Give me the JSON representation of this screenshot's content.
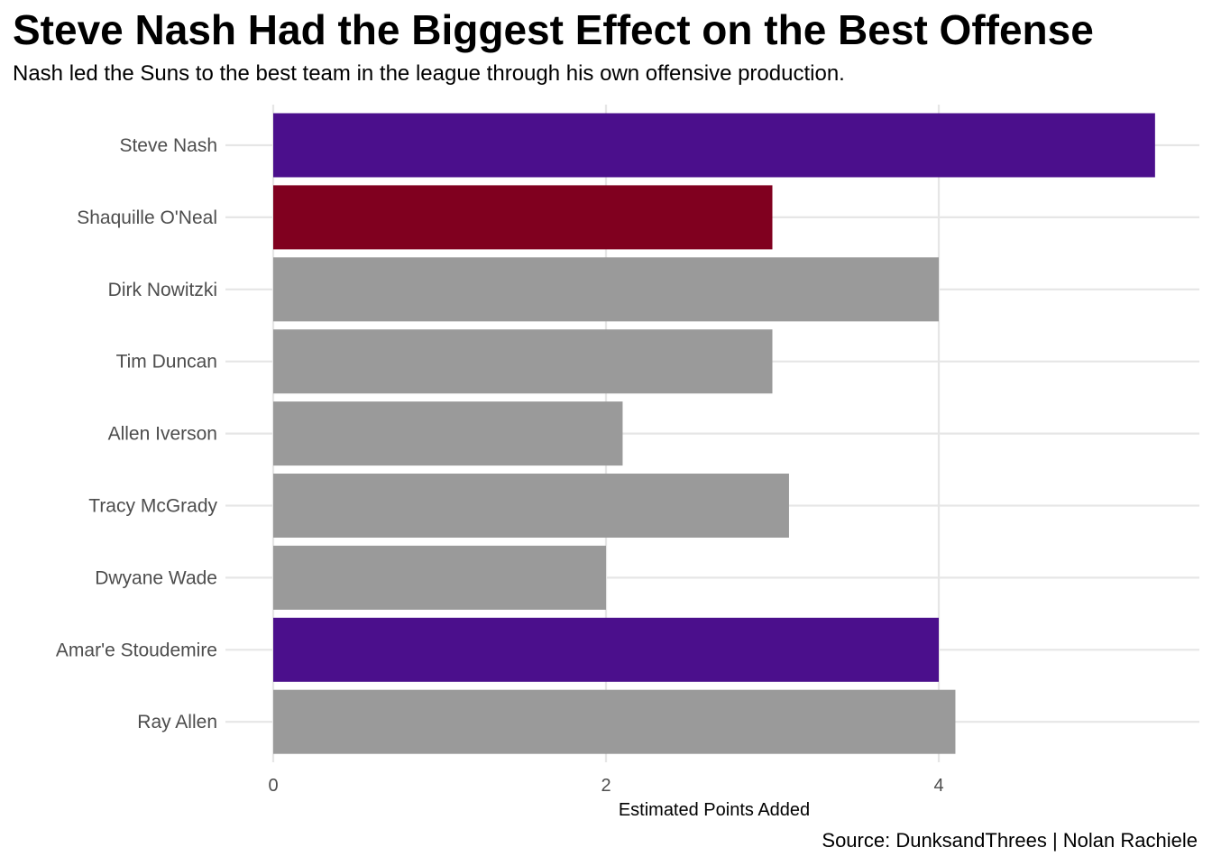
{
  "title": "Steve Nash Had the Biggest Effect on the Best Offense",
  "subtitle": "Nash led the Suns to the best team in the league through his own offensive production.",
  "caption": "Source: DunksandThrees | Nolan Rachiele",
  "colors": {
    "suns": "#4B0F8C",
    "heat": "#80001F",
    "other": "#9A9A9A",
    "grid": "#E6E6E6",
    "tick_text": "#4D4D4D"
  },
  "chart_data": {
    "type": "bar",
    "orientation": "horizontal",
    "title": "Steve Nash Had the Biggest Effect on the Best Offense",
    "subtitle": "Nash led the Suns to the best team in the league through his own offensive production.",
    "xlabel": "Estimated Points Added",
    "ylabel": "",
    "xlim": [
      0,
      5.5
    ],
    "x_ticks": [
      0,
      2,
      4
    ],
    "grid": true,
    "legend": "none",
    "categories": [
      "Steve Nash",
      "Shaquille O'Neal",
      "Dirk Nowitzki",
      "Tim Duncan",
      "Allen Iverson",
      "Tracy McGrady",
      "Dwyane Wade",
      "Amar'e Stoudemire",
      "Ray Allen"
    ],
    "values": [
      5.3,
      3.0,
      4.0,
      3.0,
      2.1,
      3.1,
      2.0,
      4.0,
      4.1
    ],
    "bar_colors": [
      "#4B0F8C",
      "#80001F",
      "#9A9A9A",
      "#9A9A9A",
      "#9A9A9A",
      "#9A9A9A",
      "#9A9A9A",
      "#4B0F8C",
      "#9A9A9A"
    ]
  }
}
